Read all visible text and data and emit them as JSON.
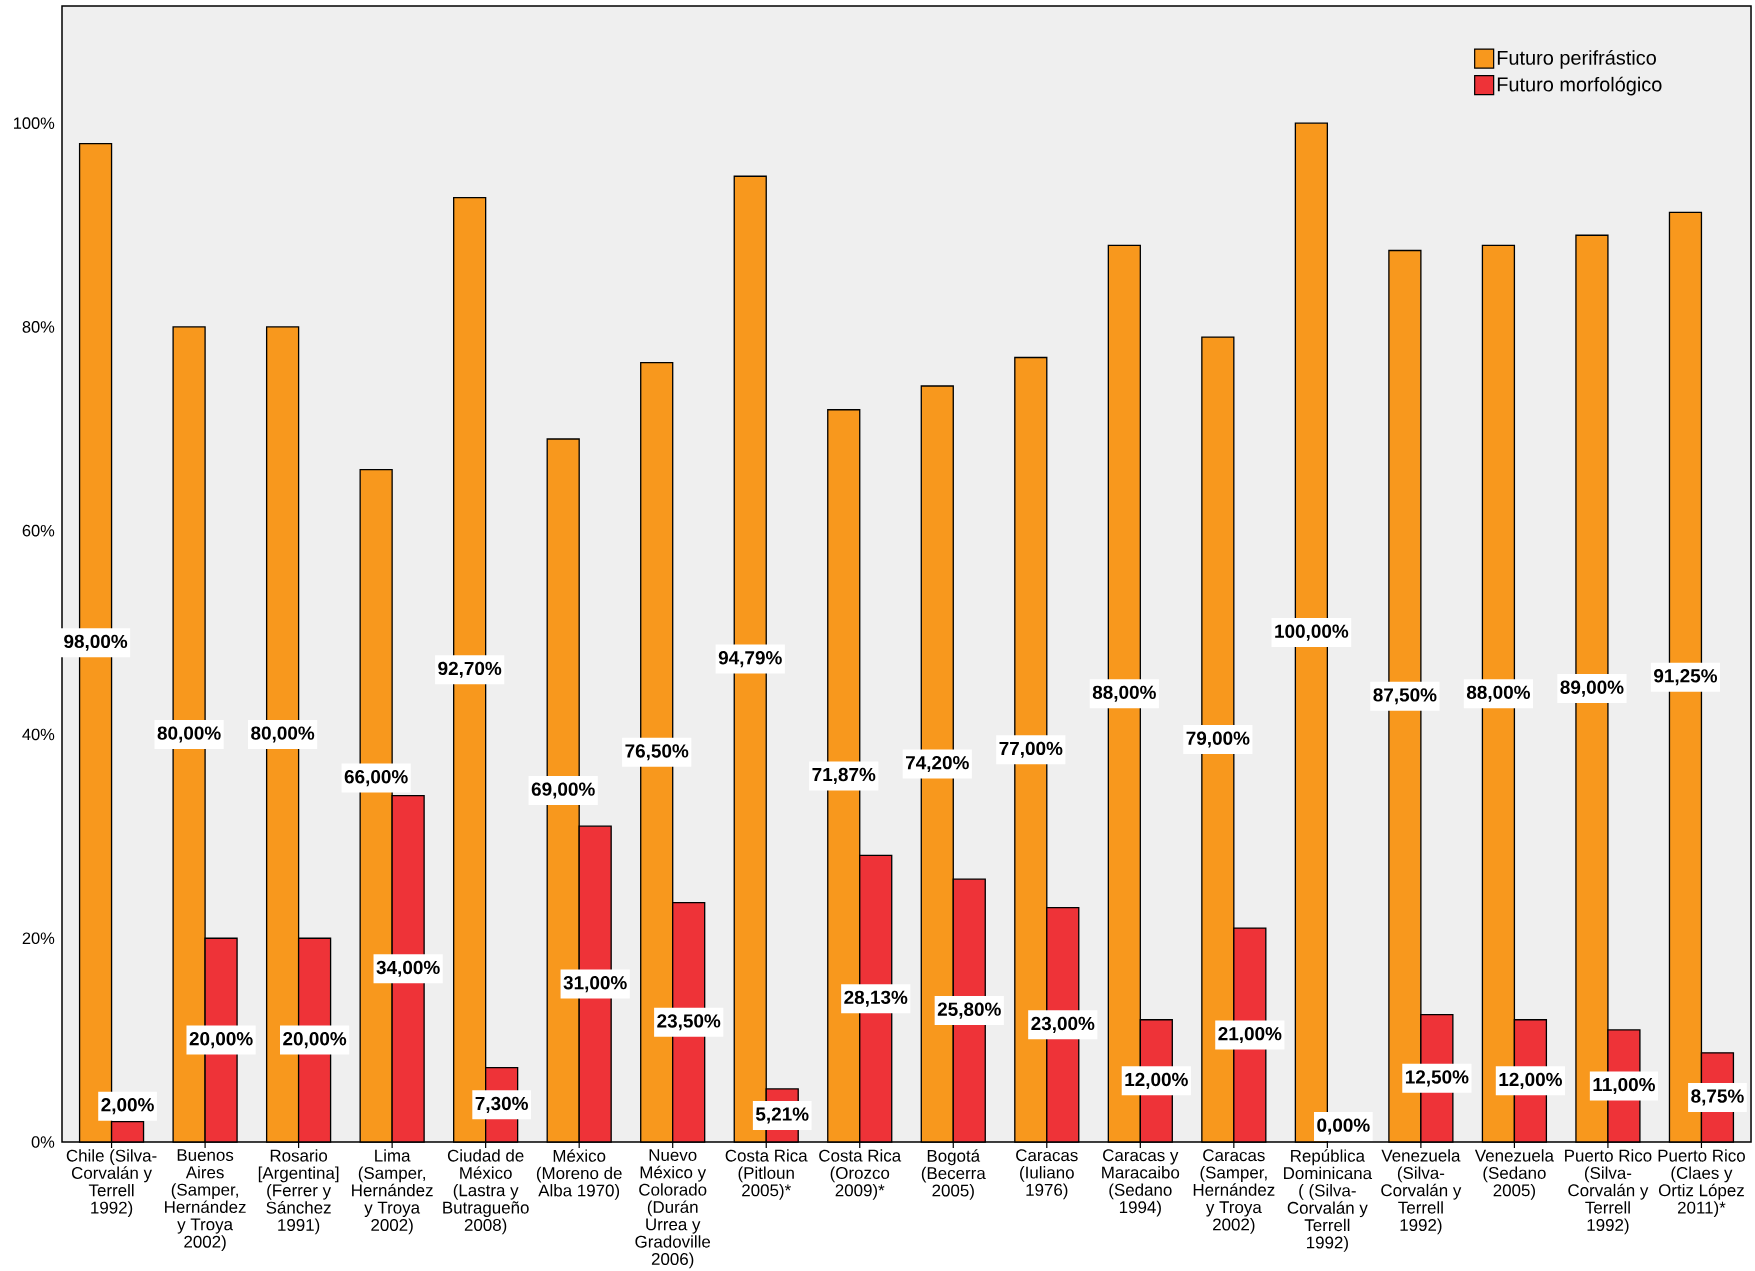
{
  "chart_data": {
    "type": "bar",
    "categories": [
      "Chile (Silva-Corvalán y Terrell 1992)",
      "Buenos Aires (Samper, Hernández y Troya 2002)",
      "Rosario [Argentina] (Ferrer y Sánchez 1991)",
      "Lima (Samper, Hernández y Troya 2002)",
      "Ciudad de México (Lastra y Butragueño 2008)",
      "México (Moreno de Alba 1970)",
      "Nuevo México y Colorado (Durán Urrea y Gradoville 2006)",
      "Costa Rica (Pitloun 2005)*",
      "Costa Rica (Orozco 2009)*",
      "Bogotá (Becerra 2005)",
      "Caracas (Iuliano 1976)",
      "Caracas y Maracaibo (Sedano 1994)",
      "Caracas (Samper, Hernández y Troya 2002)",
      "República Dominicana ( (Silva-Corvalán y Terrell 1992)",
      "Venezuela (Silva-Corvalán y Terrell 1992)",
      "Venezuela (Sedano 2005)",
      "Puerto Rico (Silva-Corvalán y Terrell 1992)",
      "Puerto Rico (Claes y Ortiz López 2011)*"
    ],
    "series": [
      {
        "name": "Futuro perifrástico",
        "color": "#f8981d",
        "values": [
          98,
          80,
          80,
          66,
          92.7,
          69,
          76.5,
          94.79,
          71.87,
          74.2,
          77,
          88,
          79,
          100,
          87.5,
          88,
          89,
          91.25
        ],
        "value_labels": [
          "98,00%",
          "80,00%",
          "80,00%",
          "66,00%",
          "92,70%",
          "69,00%",
          "76,50%",
          "94,79%",
          "71,87%",
          "74,20%",
          "77,00%",
          "88,00%",
          "79,00%",
          "100,00%",
          "87,50%",
          "88,00%",
          "89,00%",
          "91,25%"
        ]
      },
      {
        "name": "Futuro morfológico",
        "color": "#ee3338",
        "values": [
          2,
          20,
          20,
          34,
          7.3,
          31,
          23.5,
          5.21,
          28.13,
          25.8,
          23,
          12,
          21,
          0,
          12.5,
          12,
          11,
          8.75
        ],
        "value_labels": [
          "2,00%",
          "20,00%",
          "20,00%",
          "34,00%",
          "7,30%",
          "31,00%",
          "23,50%",
          "5,21%",
          "28,13%",
          "25,80%",
          "23,00%",
          "12,00%",
          "21,00%",
          "0,00%",
          "12,50%",
          "12,00%",
          "11,00%",
          "8,75%"
        ]
      }
    ],
    "ylim": [
      0,
      111.5
    ],
    "yticks": [
      {
        "value": 0,
        "label": "0%"
      },
      {
        "value": 20,
        "label": "20%"
      },
      {
        "value": 40,
        "label": "40%"
      },
      {
        "value": 60,
        "label": "60%"
      },
      {
        "value": 80,
        "label": "80%"
      },
      {
        "value": 100,
        "label": "100%"
      }
    ],
    "legend": "top right"
  }
}
